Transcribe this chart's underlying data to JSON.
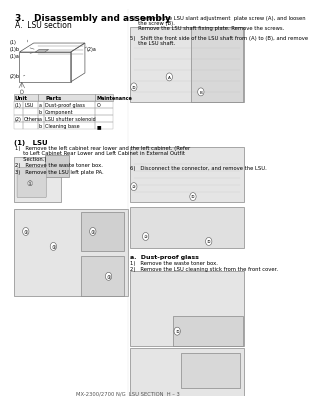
{
  "title": "3.   Disassembly and assembly",
  "subtitle": "A.  LSU section",
  "bg_color": "#ffffff",
  "text_color": "#000000",
  "footer": "MX-2300/2700 N/G  LSU SECTION  H – 3",
  "table_headers": [
    "Unit",
    "Parts",
    "Maintenance"
  ],
  "table_rows": [
    [
      "(1)",
      "LSU",
      "a",
      "Dust-proof glass",
      "O"
    ],
    [
      "",
      "",
      "b",
      "Component",
      ""
    ],
    [
      "(2)",
      "Others",
      "a",
      "LSU shutter solenoid",
      ""
    ],
    [
      "",
      "",
      "b",
      "Cleaning base",
      "■"
    ]
  ],
  "section_title": "(1)   LSU",
  "steps_left": [
    "1)   Remove the left cabinet rear lower and the left cabinet. (Refer\n     to Left Cabinet Rear Lower and Left Cabinet in External Outfit\n     Section.)",
    "2)   Remove the waste toner box.",
    "3)   Remove the LSU left plate PA."
  ],
  "steps_right": [
    "4)   Remove the LSU slant adjustment  plate screw (A), and loosen\n     the screw (B). \n     Remove the LSU shaft fixing plate. Remove the screws.",
    "5)   Shift the front side of the LSU shaft from (A) to (B), and remove\n     the LSU shaft.",
    "6)   Disconnect the connector, and remove the LSU.",
    "a.  Dust-proof glass",
    "1)   Remove the waste toner box.",
    "2)   Remove the LSU cleaning stick from the front cover."
  ],
  "diagram_labels": [
    "(1)",
    "(1) b",
    "(1) a",
    "(2) b",
    "(2) a"
  ],
  "diagram_right_label": "(2) a"
}
